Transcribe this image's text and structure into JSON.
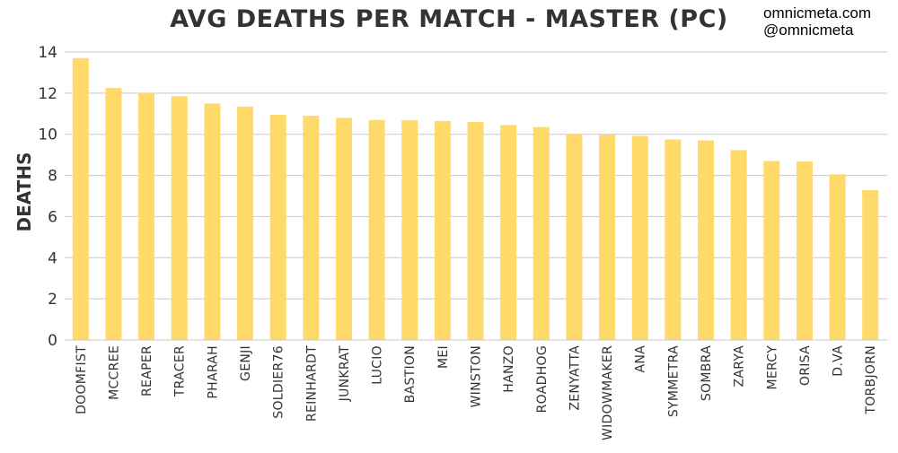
{
  "header": {
    "title": "AVG DEATHS PER MATCH - MASTER (PC)",
    "brand_site": "omnicmeta.com",
    "brand_handle": "@omnicmeta"
  },
  "chart_data": {
    "type": "bar",
    "title": "AVG DEATHS PER MATCH - MASTER (PC)",
    "xlabel": "",
    "ylabel": "DEATHS",
    "ylim": [
      0,
      14
    ],
    "yticks": [
      0,
      2,
      4,
      6,
      8,
      10,
      12,
      14
    ],
    "grid": true,
    "legend": "none",
    "bar_color": "#FFD96A",
    "grid_color": "#C8C8C8",
    "categories": [
      "DOOMFIST",
      "MCCREE",
      "REAPER",
      "TRACER",
      "PHARAH",
      "GENJI",
      "SOLDIER76",
      "REINHARDT",
      "JUNKRAT",
      "LUCIO",
      "BASTION",
      "MEI",
      "WINSTON",
      "HANZO",
      "ROADHOG",
      "ZENYATTA",
      "WIDOWMAKER",
      "ANA",
      "SYMMETRA",
      "SOMBRA",
      "ZARYA",
      "MERCY",
      "ORISA",
      "D.VA",
      "TORBJORN"
    ],
    "values": [
      13.7,
      12.25,
      12.0,
      11.85,
      11.5,
      11.35,
      10.95,
      10.9,
      10.8,
      10.7,
      10.68,
      10.65,
      10.6,
      10.45,
      10.35,
      10.0,
      9.97,
      9.92,
      9.75,
      9.7,
      9.23,
      8.7,
      8.68,
      8.05,
      7.28
    ]
  }
}
